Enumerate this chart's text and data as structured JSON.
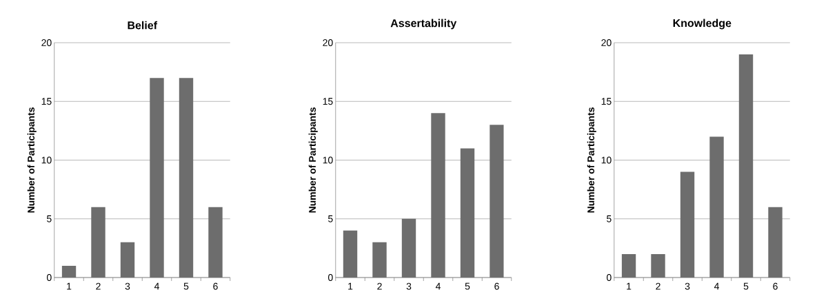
{
  "chart_data": [
    {
      "type": "bar",
      "title": "Belief",
      "ylabel": "Number of Participants",
      "categories": [
        "1",
        "2",
        "3",
        "4",
        "5",
        "6"
      ],
      "values": [
        1,
        6,
        3,
        17,
        17,
        6
      ],
      "color": "#6d6d6d",
      "ylim": [
        0,
        20
      ],
      "yticks": [
        0,
        5,
        10,
        15,
        20
      ],
      "grid": "y"
    },
    {
      "type": "bar",
      "title": "Assertability",
      "ylabel": "Number of Participants",
      "categories": [
        "1",
        "2",
        "3",
        "4",
        "5",
        "6"
      ],
      "values": [
        4,
        3,
        5,
        14,
        11,
        13
      ],
      "color": "#6d6d6d",
      "ylim": [
        0,
        20
      ],
      "yticks": [
        0,
        5,
        10,
        15,
        20
      ],
      "grid": "y"
    },
    {
      "type": "bar",
      "title": "Knowledge",
      "ylabel": "Number of Participants",
      "categories": [
        "1",
        "2",
        "3",
        "4",
        "5",
        "6"
      ],
      "values": [
        2,
        2,
        9,
        12,
        19,
        6
      ],
      "color": "#6d6d6d",
      "ylim": [
        0,
        20
      ],
      "yticks": [
        0,
        5,
        10,
        15,
        20
      ],
      "grid": "y"
    }
  ]
}
